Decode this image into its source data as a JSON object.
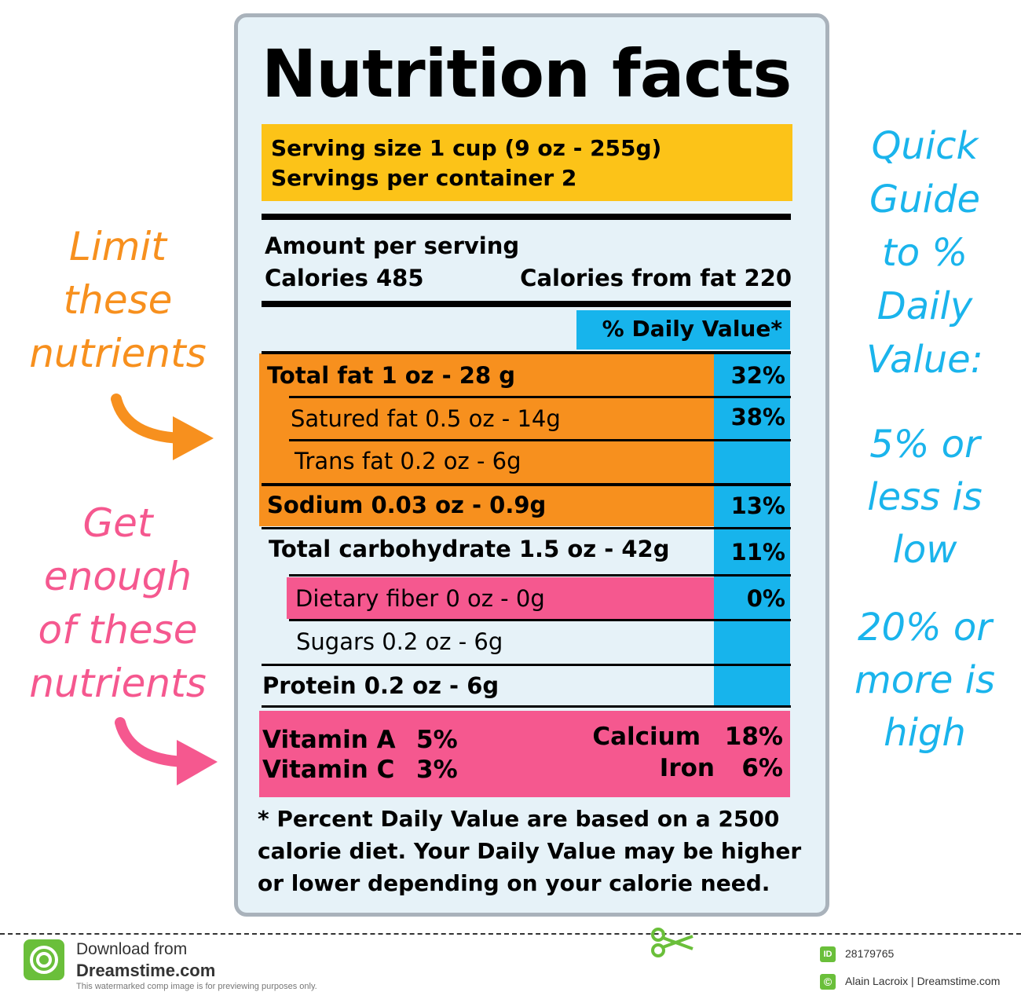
{
  "label": {
    "title": "Nutrition facts",
    "serving_size": "Serving size 1 cup (9 oz - 255g)",
    "servings_per_container": "Servings per container 2",
    "amount_per_serving": "Amount per serving",
    "calories": "Calories 485",
    "calories_from_fat": "Calories from fat 220",
    "daily_value_header": "% Daily Value*",
    "nutrients": [
      {
        "label": "Total fat 1 oz - 28 g",
        "pct": "32%"
      },
      {
        "label": "Satured fat 0.5 oz - 14g",
        "pct": "38%"
      },
      {
        "label": "Trans fat 0.2 oz - 6g",
        "pct": ""
      },
      {
        "label": "Sodium 0.03 oz - 0.9g",
        "pct": "13%"
      },
      {
        "label": "Total carbohydrate 1.5 oz - 42g",
        "pct": "11%"
      },
      {
        "label": "Dietary fiber 0 oz - 0g",
        "pct": "0%"
      },
      {
        "label": "Sugars 0.2 oz - 6g",
        "pct": ""
      },
      {
        "label": "Protein 0.2 oz - 6g",
        "pct": ""
      }
    ],
    "vitamins": {
      "vitamin_a_label": "Vitamin A",
      "vitamin_a_pct": "5%",
      "vitamin_c_label": "Vitamin C",
      "vitamin_c_pct": "3%",
      "calcium_label": "Calcium",
      "calcium_pct": "18%",
      "iron_label": "Iron",
      "iron_pct": "6%"
    },
    "footnote": "* Percent Daily Value are based on a 2500 calorie diet. Your Daily Value may be higher or lower depending on your calorie need."
  },
  "guides": {
    "limit_lines": [
      "Limit",
      "these",
      "nutrients"
    ],
    "get_lines": [
      "Get",
      "enough",
      "of these",
      "nutrients"
    ],
    "quick_lines": [
      "Quick",
      "Guide",
      "to %",
      "Daily",
      "Value:"
    ],
    "low_lines": [
      "5% or",
      "less is",
      "low"
    ],
    "high_lines": [
      "20% or",
      "more is",
      "high"
    ]
  },
  "colors": {
    "limit": "#f7901e",
    "get_enough": "#f5588f",
    "daily_value": "#17b4ec",
    "serving_box": "#fcc318"
  },
  "footer": {
    "download_from": "Download from",
    "site": "Dreamstime.com",
    "disclaimer": "This watermarked comp image is for previewing purposes only.",
    "id_badge": "ID",
    "id_number": "28179765",
    "credit": "Alain Lacroix | Dreamstime.com"
  }
}
